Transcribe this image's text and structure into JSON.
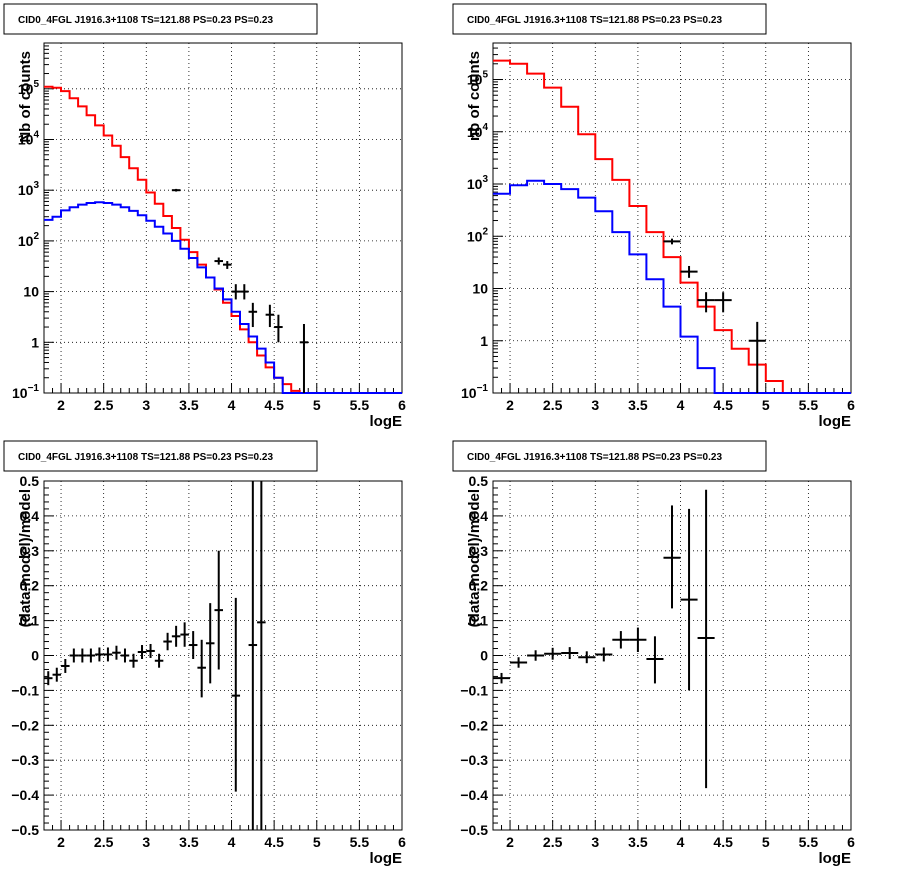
{
  "chart_data": [
    {
      "type": "line",
      "title": "CID0_4FGL J1916.3+1108 TS=121.88 PS=0.23 PS=0.23",
      "xlabel": "logE",
      "ylabel": "Nb of counts",
      "yscale": "log",
      "xlim": [
        1.8,
        6.0
      ],
      "ylim": [
        0.1,
        800000
      ],
      "grid": true,
      "x_ticks": [
        "2",
        "2.5",
        "3",
        "3.5",
        "4",
        "4.5",
        "5",
        "5.5",
        "6"
      ],
      "y_ticks": [
        "10⁻¹",
        "1",
        "10",
        "10²",
        "10³",
        "10⁴",
        "10⁵"
      ],
      "series": [
        {
          "color": "#ff0000",
          "kind": "step",
          "bin_edges": [
            1.8,
            1.9,
            2.0,
            2.1,
            2.2,
            2.3,
            2.4,
            2.5,
            2.6,
            2.7,
            2.8,
            2.9,
            3.0,
            3.1,
            3.2,
            3.3,
            3.4,
            3.5,
            3.6,
            3.7,
            3.8,
            3.9,
            4.0,
            4.1,
            4.2,
            4.3,
            4.4,
            4.5,
            4.6,
            4.7,
            4.8,
            4.9,
            5.0,
            5.1,
            5.2,
            5.3,
            5.4,
            5.5,
            5.6,
            5.7,
            5.8,
            5.9,
            6.0
          ],
          "values": [
            110000,
            105000,
            90000,
            65000,
            45000,
            30000,
            19000,
            12000,
            7500,
            4500,
            2700,
            1600,
            900,
            540,
            310,
            180,
            105,
            60,
            34,
            19,
            11,
            6,
            3.3,
            1.8,
            1.0,
            0.55,
            0.32,
            0.2,
            0.15,
            0.11,
            0.1,
            0.1,
            0.1,
            0.1,
            0.1,
            0.1,
            0.1,
            0.1,
            0.1,
            0.1,
            0.1,
            0.1
          ]
        },
        {
          "color": "#0000ff",
          "kind": "step",
          "bin_edges": [
            1.8,
            1.9,
            2.0,
            2.1,
            2.2,
            2.3,
            2.4,
            2.5,
            2.6,
            2.7,
            2.8,
            2.9,
            3.0,
            3.1,
            3.2,
            3.3,
            3.4,
            3.5,
            3.6,
            3.7,
            3.8,
            3.9,
            4.0,
            4.1,
            4.2,
            4.3,
            4.4,
            4.5,
            4.6,
            4.7,
            4.8,
            4.9,
            5.0,
            5.1,
            5.2,
            5.3,
            5.4,
            5.5,
            5.6,
            5.7,
            5.8,
            5.9,
            6.0
          ],
          "values": [
            260,
            300,
            400,
            460,
            520,
            560,
            580,
            560,
            520,
            460,
            390,
            320,
            250,
            190,
            140,
            100,
            70,
            46,
            30,
            19,
            11.5,
            7,
            4,
            2.3,
            1.3,
            0.75,
            0.4,
            0.2,
            0.1,
            0.1,
            0.1,
            0.1,
            0.1,
            0.1,
            0.1,
            0.1,
            0.1,
            0.1,
            0.1,
            0.1,
            0.1,
            0.1
          ]
        }
      ],
      "data_points": [
        {
          "x": 3.35,
          "y": 1000,
          "xerr": 0.05,
          "ylo": 940,
          "yhi": 1060
        },
        {
          "x": 3.85,
          "y": 40,
          "xerr": 0.05,
          "ylo": 34,
          "yhi": 47
        },
        {
          "x": 3.95,
          "y": 34,
          "xerr": 0.05,
          "ylo": 28,
          "yhi": 40
        },
        {
          "x": 4.05,
          "y": 10,
          "xerr": 0.05,
          "ylo": 7,
          "yhi": 14
        },
        {
          "x": 4.15,
          "y": 10,
          "xerr": 0.05,
          "ylo": 7,
          "yhi": 14
        },
        {
          "x": 4.25,
          "y": 4,
          "xerr": 0.05,
          "ylo": 2,
          "yhi": 6
        },
        {
          "x": 4.45,
          "y": 3.5,
          "xerr": 0.05,
          "ylo": 2,
          "yhi": 5.5
        },
        {
          "x": 4.55,
          "y": 2,
          "xerr": 0.05,
          "ylo": 1,
          "yhi": 3.5
        },
        {
          "x": 4.85,
          "y": 1,
          "xerr": 0.05,
          "ylo": 0.1,
          "yhi": 2.3
        }
      ]
    },
    {
      "type": "line",
      "title": "CID0_4FGL J1916.3+1108 TS=121.88 PS=0.23 PS=0.23",
      "xlabel": "logE",
      "ylabel": "nb of counts",
      "yscale": "log",
      "xlim": [
        1.8,
        6.0
      ],
      "ylim": [
        0.1,
        500000
      ],
      "grid": true,
      "x_ticks": [
        "2",
        "2.5",
        "3",
        "3.5",
        "4",
        "4.5",
        "5",
        "5.5",
        "6"
      ],
      "y_ticks": [
        "10⁻¹",
        "1",
        "10",
        "10²",
        "10³",
        "10⁴",
        "10⁵"
      ],
      "series": [
        {
          "color": "#ff0000",
          "kind": "step",
          "bin_edges": [
            1.8,
            2.0,
            2.2,
            2.4,
            2.6,
            2.8,
            3.0,
            3.2,
            3.4,
            3.6,
            3.8,
            4.0,
            4.2,
            4.4,
            4.6,
            4.8,
            5.0,
            5.2,
            5.4,
            5.6,
            5.8,
            6.0
          ],
          "values": [
            230000,
            200000,
            130000,
            70000,
            30000,
            9000,
            3000,
            1200,
            380,
            120,
            40,
            13,
            4.5,
            1.6,
            0.7,
            0.35,
            0.17,
            0.1,
            0.1,
            0.1,
            0.1
          ]
        },
        {
          "color": "#0000ff",
          "kind": "step",
          "bin_edges": [
            1.8,
            2.0,
            2.2,
            2.4,
            2.6,
            2.8,
            3.0,
            3.2,
            3.4,
            3.6,
            3.8,
            4.0,
            4.2,
            4.4,
            4.6,
            4.8,
            5.0,
            5.2,
            5.4,
            5.6,
            5.8,
            6.0
          ],
          "values": [
            650,
            950,
            1150,
            1000,
            800,
            550,
            300,
            120,
            45,
            15,
            4.5,
            1.2,
            0.3,
            0.1,
            0.1,
            0.1,
            0.1,
            0.1,
            0.1,
            0.1,
            0.1
          ]
        }
      ],
      "data_points": [
        {
          "x": 3.9,
          "y": 80,
          "xerr": 0.1,
          "ylo": 70,
          "yhi": 90
        },
        {
          "x": 4.1,
          "y": 21,
          "xerr": 0.1,
          "ylo": 16,
          "yhi": 27
        },
        {
          "x": 4.3,
          "y": 6,
          "xerr": 0.1,
          "ylo": 3.5,
          "yhi": 8.5
        },
        {
          "x": 4.5,
          "y": 6,
          "xerr": 0.1,
          "ylo": 3.5,
          "yhi": 8.5
        },
        {
          "x": 4.9,
          "y": 1,
          "xerr": 0.1,
          "ylo": 0.1,
          "yhi": 2.3
        }
      ]
    },
    {
      "type": "scatter",
      "title": "CID0_4FGL J1916.3+1108 TS=121.88 PS=0.23 PS=0.23",
      "xlabel": "logE",
      "ylabel": "(data-model)/model",
      "xlim": [
        1.8,
        6.0
      ],
      "ylim": [
        -0.5,
        0.5
      ],
      "grid": true,
      "x_ticks": [
        "2",
        "2.5",
        "3",
        "3.5",
        "4",
        "4.5",
        "5",
        "5.5",
        "6"
      ],
      "y_ticks": [
        "−0.5",
        "−0.4",
        "−0.3",
        "−0.2",
        "−0.1",
        "0",
        "0.1",
        "0.2",
        "0.3",
        "0.4",
        "0.5"
      ],
      "data_points": [
        {
          "x": 1.85,
          "y": -0.065,
          "xerr": 0.05,
          "ylo": -0.085,
          "yhi": -0.045
        },
        {
          "x": 1.95,
          "y": -0.055,
          "xerr": 0.05,
          "ylo": -0.075,
          "yhi": -0.035
        },
        {
          "x": 2.05,
          "y": -0.03,
          "xerr": 0.05,
          "ylo": -0.05,
          "yhi": -0.01
        },
        {
          "x": 2.15,
          "y": 0.0,
          "xerr": 0.05,
          "ylo": -0.02,
          "yhi": 0.02
        },
        {
          "x": 2.25,
          "y": 0.0,
          "xerr": 0.05,
          "ylo": -0.02,
          "yhi": 0.02
        },
        {
          "x": 2.35,
          "y": 0.0,
          "xerr": 0.05,
          "ylo": -0.02,
          "yhi": 0.02
        },
        {
          "x": 2.45,
          "y": 0.003,
          "xerr": 0.05,
          "ylo": -0.017,
          "yhi": 0.023
        },
        {
          "x": 2.55,
          "y": 0.003,
          "xerr": 0.05,
          "ylo": -0.017,
          "yhi": 0.023
        },
        {
          "x": 2.65,
          "y": 0.008,
          "xerr": 0.05,
          "ylo": -0.012,
          "yhi": 0.028
        },
        {
          "x": 2.75,
          "y": 0.0,
          "xerr": 0.05,
          "ylo": -0.02,
          "yhi": 0.02
        },
        {
          "x": 2.85,
          "y": -0.015,
          "xerr": 0.05,
          "ylo": -0.035,
          "yhi": 0.005
        },
        {
          "x": 2.95,
          "y": 0.01,
          "xerr": 0.05,
          "ylo": -0.01,
          "yhi": 0.03
        },
        {
          "x": 3.05,
          "y": 0.013,
          "xerr": 0.05,
          "ylo": -0.007,
          "yhi": 0.033
        },
        {
          "x": 3.15,
          "y": -0.015,
          "xerr": 0.05,
          "ylo": -0.035,
          "yhi": 0.005
        },
        {
          "x": 3.25,
          "y": 0.04,
          "xerr": 0.05,
          "ylo": 0.015,
          "yhi": 0.065
        },
        {
          "x": 3.35,
          "y": 0.055,
          "xerr": 0.05,
          "ylo": 0.025,
          "yhi": 0.085
        },
        {
          "x": 3.45,
          "y": 0.06,
          "xerr": 0.05,
          "ylo": 0.025,
          "yhi": 0.095
        },
        {
          "x": 3.55,
          "y": 0.03,
          "xerr": 0.05,
          "ylo": -0.01,
          "yhi": 0.07
        },
        {
          "x": 3.65,
          "y": -0.035,
          "xerr": 0.05,
          "ylo": -0.12,
          "yhi": 0.045
        },
        {
          "x": 3.75,
          "y": 0.035,
          "xerr": 0.05,
          "ylo": -0.08,
          "yhi": 0.15
        },
        {
          "x": 3.85,
          "y": 0.13,
          "xerr": 0.05,
          "ylo": -0.04,
          "yhi": 0.3
        },
        {
          "x": 4.05,
          "y": -0.115,
          "xerr": 0.05,
          "ylo": -0.39,
          "yhi": 0.165
        },
        {
          "x": 4.25,
          "y": 0.03,
          "xerr": 0.05,
          "ylo": -0.5,
          "yhi": 0.5
        },
        {
          "x": 4.35,
          "y": 0.095,
          "xerr": 0.05,
          "ylo": -0.5,
          "yhi": 0.5
        }
      ]
    },
    {
      "type": "scatter",
      "title": "CID0_4FGL J1916.3+1108 TS=121.88 PS=0.23 PS=0.23",
      "xlabel": "logE",
      "ylabel": "(data-model)/model",
      "xlim": [
        1.8,
        6.0
      ],
      "ylim": [
        -0.5,
        0.5
      ],
      "grid": true,
      "x_ticks": [
        "2",
        "2.5",
        "3",
        "3.5",
        "4",
        "4.5",
        "5",
        "5.5",
        "6"
      ],
      "y_ticks": [
        "−0.5",
        "−0.4",
        "−0.3",
        "−0.2",
        "−0.1",
        "0",
        "0.1",
        "0.2",
        "0.3",
        "0.4",
        "0.5"
      ],
      "data_points": [
        {
          "x": 1.9,
          "y": -0.065,
          "xerr": 0.1,
          "ylo": -0.08,
          "yhi": -0.05
        },
        {
          "x": 2.1,
          "y": -0.02,
          "xerr": 0.1,
          "ylo": -0.035,
          "yhi": -0.005
        },
        {
          "x": 2.3,
          "y": 0.0,
          "xerr": 0.1,
          "ylo": -0.015,
          "yhi": 0.015
        },
        {
          "x": 2.5,
          "y": 0.005,
          "xerr": 0.1,
          "ylo": -0.012,
          "yhi": 0.022
        },
        {
          "x": 2.7,
          "y": 0.007,
          "xerr": 0.1,
          "ylo": -0.01,
          "yhi": 0.024
        },
        {
          "x": 2.9,
          "y": -0.005,
          "xerr": 0.1,
          "ylo": -0.022,
          "yhi": 0.012
        },
        {
          "x": 3.1,
          "y": 0.003,
          "xerr": 0.1,
          "ylo": -0.017,
          "yhi": 0.023
        },
        {
          "x": 3.3,
          "y": 0.045,
          "xerr": 0.1,
          "ylo": 0.02,
          "yhi": 0.07
        },
        {
          "x": 3.5,
          "y": 0.045,
          "xerr": 0.1,
          "ylo": 0.01,
          "yhi": 0.08
        },
        {
          "x": 3.7,
          "y": -0.01,
          "xerr": 0.1,
          "ylo": -0.08,
          "yhi": 0.055
        },
        {
          "x": 3.9,
          "y": 0.28,
          "xerr": 0.1,
          "ylo": 0.135,
          "yhi": 0.43
        },
        {
          "x": 4.1,
          "y": 0.16,
          "xerr": 0.1,
          "ylo": -0.1,
          "yhi": 0.42
        },
        {
          "x": 4.3,
          "y": 0.05,
          "xerr": 0.1,
          "ylo": -0.38,
          "yhi": 0.475
        }
      ]
    }
  ]
}
